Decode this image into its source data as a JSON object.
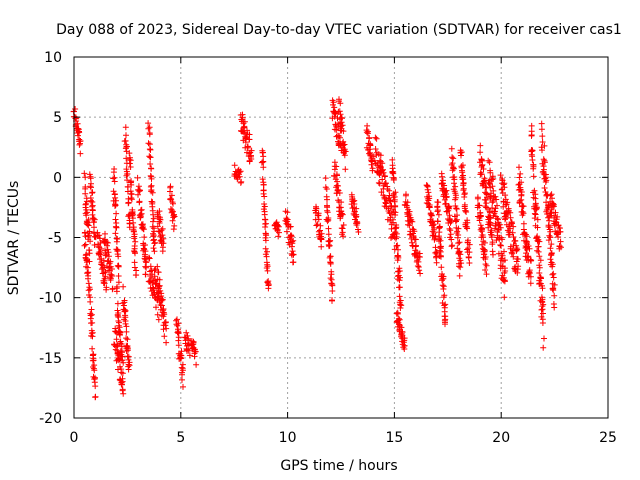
{
  "chart_data": {
    "type": "scatter",
    "title": "Day 088 of 2023, Sidereal Day-to-day VTEC variation (SDTVAR) for receiver cas1",
    "xlabel": "GPS time / hours",
    "ylabel": "SDTVAR / TECUs",
    "xlim": [
      0,
      25
    ],
    "ylim": [
      -20,
      10
    ],
    "xticks": [
      0,
      5,
      10,
      15,
      20,
      25
    ],
    "yticks": [
      -20,
      -15,
      -10,
      -5,
      0,
      5,
      10
    ],
    "grid": true,
    "marker": "+",
    "color": "#ff0000",
    "segments": [
      [
        0.0,
        0.3,
        5.5,
        2.5,
        0.6
      ],
      [
        0.5,
        0.75,
        -0.5,
        -6.5,
        1.2
      ],
      [
        0.5,
        0.7,
        -5.0,
        -9.0,
        1.0
      ],
      [
        0.75,
        1.0,
        -10.0,
        -18.0,
        1.0
      ],
      [
        0.75,
        1.0,
        0.0,
        -5.0,
        1.0
      ],
      [
        1.1,
        1.5,
        -5.0,
        -9.0,
        1.0
      ],
      [
        1.4,
        1.8,
        -5.0,
        -8.5,
        1.0
      ],
      [
        1.85,
        2.1,
        0.0,
        -8.0,
        1.2
      ],
      [
        1.9,
        2.3,
        -13.0,
        -18.0,
        1.0
      ],
      [
        2.0,
        2.3,
        -10.0,
        -16.0,
        1.0
      ],
      [
        2.4,
        2.6,
        3.5,
        -4.0,
        1.0
      ],
      [
        2.3,
        2.6,
        -10.0,
        -16.0,
        1.0
      ],
      [
        2.6,
        2.9,
        1.5,
        -8.0,
        1.0
      ],
      [
        3.0,
        3.4,
        -0.5,
        -8.0,
        1.0
      ],
      [
        3.5,
        3.8,
        4.0,
        -7.0,
        1.2
      ],
      [
        3.5,
        4.0,
        -7.5,
        -11.0,
        1.2
      ],
      [
        3.9,
        4.3,
        -8.0,
        -13.0,
        1.0
      ],
      [
        3.9,
        4.2,
        -3.0,
        -5.5,
        1.0
      ],
      [
        4.5,
        4.7,
        -1.0,
        -4.0,
        0.8
      ],
      [
        4.8,
        5.1,
        -12.0,
        -16.5,
        1.0
      ],
      [
        5.2,
        5.4,
        -13.0,
        -14.5,
        0.8
      ],
      [
        5.5,
        5.7,
        -13.5,
        -15.0,
        0.6
      ],
      [
        7.5,
        7.8,
        0.5,
        0.0,
        0.5
      ],
      [
        7.8,
        8.3,
        4.5,
        2.0,
        1.2
      ],
      [
        8.8,
        9.1,
        2.5,
        -9.5,
        0.8
      ],
      [
        9.4,
        9.6,
        -3.5,
        -4.5,
        0.5
      ],
      [
        9.9,
        10.3,
        -3.0,
        -6.5,
        1.0
      ],
      [
        11.3,
        11.6,
        -2.5,
        -5.5,
        0.8
      ],
      [
        11.8,
        12.1,
        -1.0,
        -10.0,
        1.0
      ],
      [
        12.1,
        12.5,
        6.0,
        2.5,
        1.0
      ],
      [
        12.4,
        12.7,
        6.2,
        1.5,
        1.0
      ],
      [
        12.2,
        12.6,
        1.0,
        -4.5,
        1.0
      ],
      [
        13.0,
        13.3,
        -1.5,
        -4.0,
        0.6
      ],
      [
        13.7,
        14.0,
        3.5,
        1.0,
        0.8
      ],
      [
        14.1,
        15.0,
        2.5,
        -4.5,
        1.6
      ],
      [
        14.9,
        15.3,
        1.5,
        -11.0,
        1.2
      ],
      [
        15.1,
        15.5,
        -11.5,
        -14.0,
        0.5
      ],
      [
        15.5,
        16.2,
        -2.0,
        -7.5,
        1.0
      ],
      [
        16.5,
        17.0,
        -1.0,
        -6.5,
        0.8
      ],
      [
        17.0,
        17.4,
        -2.0,
        -12.5,
        1.2
      ],
      [
        17.2,
        17.7,
        0.5,
        -5.0,
        1.0
      ],
      [
        17.7,
        18.1,
        1.5,
        -8.0,
        1.0
      ],
      [
        18.1,
        18.5,
        2.0,
        -6.5,
        1.0
      ],
      [
        18.9,
        19.3,
        -2.0,
        -7.5,
        0.8
      ],
      [
        19.0,
        19.6,
        1.5,
        -5.5,
        1.2
      ],
      [
        19.4,
        20.2,
        1.0,
        -9.0,
        1.8
      ],
      [
        20.0,
        20.8,
        -0.5,
        -8.0,
        1.6
      ],
      [
        20.8,
        21.4,
        0.0,
        -8.5,
        1.5
      ],
      [
        21.4,
        22.0,
        3.0,
        -13.0,
        1.8
      ],
      [
        21.9,
        22.5,
        3.5,
        -10.0,
        1.4
      ],
      [
        22.3,
        22.8,
        -2.0,
        -5.5,
        1.0
      ]
    ]
  }
}
